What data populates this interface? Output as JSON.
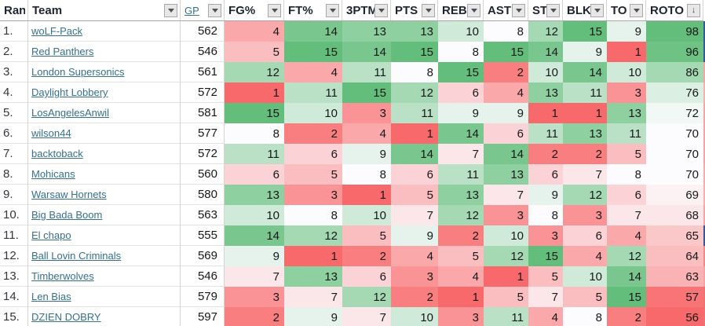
{
  "columns": [
    {
      "key": "rank",
      "label": "Ran",
      "filter": false
    },
    {
      "key": "team",
      "label": "Team",
      "filter": true
    },
    {
      "key": "gp",
      "label": "GP",
      "filter": true,
      "link_style": true
    },
    {
      "key": "fg_pct",
      "label": "FG%",
      "filter": true,
      "heat": true
    },
    {
      "key": "ft_pct",
      "label": "FT%",
      "filter": true,
      "heat": true
    },
    {
      "key": "three_ptm",
      "label": "3PTM",
      "filter": true,
      "heat": true
    },
    {
      "key": "pts",
      "label": "PTS",
      "filter": true,
      "heat": true
    },
    {
      "key": "reb",
      "label": "REB",
      "filter": true,
      "heat": true
    },
    {
      "key": "ast",
      "label": "AST",
      "filter": true,
      "heat": true
    },
    {
      "key": "st",
      "label": "ST",
      "filter": true,
      "heat": true
    },
    {
      "key": "blk",
      "label": "BLK",
      "filter": true,
      "heat": true
    },
    {
      "key": "to",
      "label": "TO",
      "filter": true,
      "heat": true
    },
    {
      "key": "roto",
      "label": "ROTO",
      "sorted_desc": true,
      "heat": true
    }
  ],
  "stat_keys": [
    "fg_pct",
    "ft_pct",
    "three_ptm",
    "pts",
    "reb",
    "ast",
    "st",
    "blk",
    "to"
  ],
  "rows": [
    {
      "rank": "1.",
      "team": "woLF-Pack",
      "gp": "562",
      "stats": [
        4,
        14,
        13,
        13,
        10,
        8,
        12,
        15,
        9
      ],
      "roto": 98
    },
    {
      "rank": "2.",
      "team": "Red Panthers",
      "gp": "546",
      "stats": [
        5,
        15,
        14,
        15,
        8,
        15,
        14,
        9,
        1
      ],
      "roto": 96
    },
    {
      "rank": "3.",
      "team": "London Supersonics",
      "gp": "561",
      "stats": [
        12,
        4,
        11,
        8,
        15,
        2,
        10,
        14,
        10
      ],
      "roto": 86
    },
    {
      "rank": "4.",
      "team": "Daylight Lobbery",
      "gp": "572",
      "stats": [
        1,
        11,
        15,
        12,
        6,
        4,
        13,
        11,
        3
      ],
      "roto": 76
    },
    {
      "rank": "5.",
      "team": "LosAngelesAnwil",
      "gp": "581",
      "stats": [
        15,
        10,
        3,
        11,
        9,
        9,
        1,
        1,
        13
      ],
      "roto": 72
    },
    {
      "rank": "6.",
      "team": "wilson44",
      "gp": "577",
      "stats": [
        8,
        2,
        4,
        1,
        14,
        6,
        11,
        13,
        11
      ],
      "roto": 70
    },
    {
      "rank": "7.",
      "team": "backtoback",
      "gp": "572",
      "stats": [
        11,
        6,
        9,
        14,
        7,
        14,
        2,
        2,
        5
      ],
      "roto": 70
    },
    {
      "rank": "8.",
      "team": "Mohicans",
      "gp": "560",
      "stats": [
        6,
        5,
        8,
        6,
        11,
        13,
        6,
        7,
        8
      ],
      "roto": 70
    },
    {
      "rank": "9.",
      "team": "Warsaw Hornets",
      "gp": "580",
      "stats": [
        13,
        3,
        1,
        5,
        13,
        7,
        9,
        12,
        6
      ],
      "roto": 69
    },
    {
      "rank": "10.",
      "team": "Big Bada Boom",
      "gp": "563",
      "stats": [
        10,
        8,
        10,
        7,
        12,
        3,
        8,
        3,
        7
      ],
      "roto": 68
    },
    {
      "rank": "11.",
      "team": "El chapo",
      "gp": "555",
      "stats": [
        14,
        12,
        5,
        9,
        2,
        10,
        3,
        6,
        4
      ],
      "roto": 65
    },
    {
      "rank": "12.",
      "team": "Ball Lovin Criminals",
      "gp": "569",
      "stats": [
        9,
        1,
        2,
        4,
        5,
        12,
        15,
        4,
        12
      ],
      "roto": 64
    },
    {
      "rank": "13.",
      "team": "Timberwolves",
      "gp": "546",
      "stats": [
        7,
        13,
        6,
        3,
        4,
        1,
        5,
        10,
        14
      ],
      "roto": 63
    },
    {
      "rank": "14.",
      "team": "Len Bias",
      "gp": "579",
      "stats": [
        3,
        7,
        12,
        2,
        1,
        5,
        7,
        5,
        15
      ],
      "roto": 57
    },
    {
      "rank": "15.",
      "team": "DZIEN DOBRY",
      "gp": "597",
      "stats": [
        2,
        9,
        7,
        10,
        3,
        11,
        4,
        8,
        2
      ],
      "roto": 56
    }
  ],
  "scales": {
    "stats": {
      "min": 1,
      "mid": 8,
      "max": 15
    },
    "roto": {
      "min": 56,
      "mid": 70,
      "max": 98
    }
  },
  "colors": {
    "heat_low": "#F8696B",
    "heat_mid": "#FCFCFF",
    "heat_high": "#63BE7B",
    "link": "#35708E",
    "header_text": "#1F2430",
    "grid_line": "#D4D4D4",
    "header_border": "#A8A8A8",
    "edge_colors": [
      "#35599C",
      "#35599C",
      "#F5A4A6",
      "#F7B0B2",
      "#F5A4A6",
      "#F5A4A6",
      "#F5A4A6",
      "#F6ABAD",
      "#F7B0B2",
      "#F5A4A6",
      "#35599C",
      "#F1898C",
      "#F5A4A6",
      "#EE7174",
      "#EE7174"
    ]
  }
}
